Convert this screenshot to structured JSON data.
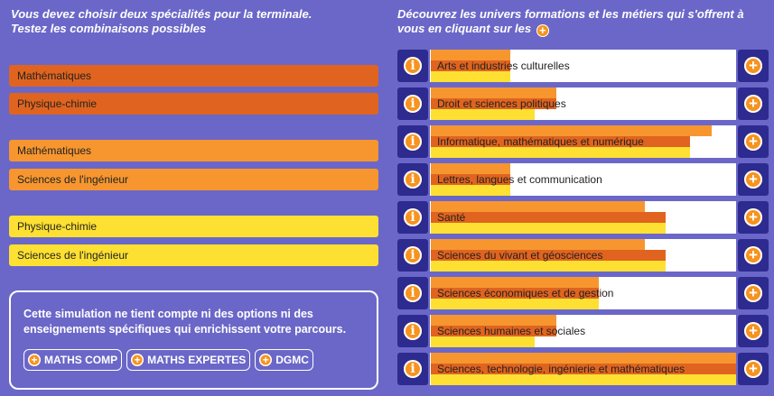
{
  "left": {
    "heading_line1": "Vous devez choisir deux spécialités pour la terminale.",
    "heading_line2": "Testez les combinaisons possibles",
    "combos": [
      {
        "a": "Mathématiques",
        "b": "Physique-chimie",
        "color": "#e0641f"
      },
      {
        "a": "Mathématiques",
        "b": "Sciences de l'ingénieur",
        "color": "#f7962f"
      },
      {
        "a": "Physique-chimie",
        "b": "Sciences de l'ingénieur",
        "color": "#fde032"
      }
    ],
    "note_text": "Cette simulation ne tient compte ni des options ni des enseignements spécifiques qui enrichissent votre parcours.",
    "options": [
      "MATHS COMP",
      "MATHS EXPERTES",
      "DGMC"
    ]
  },
  "right": {
    "heading_line1": "Découvrez les univers formations et les métiers qui s'offrent à",
    "heading_line2": "vous en cliquant sur les",
    "universes": [
      {
        "label": "Arts et industries culturelles",
        "levels": [
          0.26,
          0.26,
          0.26
        ]
      },
      {
        "label": "Droit et sciences politiques",
        "levels": [
          0.41,
          0.41,
          0.34
        ]
      },
      {
        "label": "Informatique, mathématiques et numérique",
        "levels": [
          0.92,
          0.85,
          0.85
        ]
      },
      {
        "label": "Lettres, langues et communication",
        "levels": [
          0.26,
          0.26,
          0.26
        ]
      },
      {
        "label": "Santé",
        "levels": [
          0.7,
          0.77,
          0.77
        ]
      },
      {
        "label": "Sciences du vivant et géosciences",
        "levels": [
          0.7,
          0.77,
          0.77
        ]
      },
      {
        "label": "Sciences économiques et de gestion",
        "levels": [
          0.55,
          0.55,
          0.55
        ]
      },
      {
        "label": "Sciences humaines et sociales",
        "levels": [
          0.41,
          0.41,
          0.34
        ]
      },
      {
        "label": "Sciences, technologie, ingénierie et mathématiques",
        "levels": [
          1.0,
          1.0,
          1.0
        ]
      }
    ]
  },
  "colors": {
    "background": "#6b67c8",
    "combo1": "#e0641f",
    "combo2": "#f7962f",
    "combo3": "#fde032",
    "button": "#2d2a90",
    "icon": "#f7931e"
  },
  "icons": {
    "info": "info-icon",
    "plus": "plus-icon"
  }
}
